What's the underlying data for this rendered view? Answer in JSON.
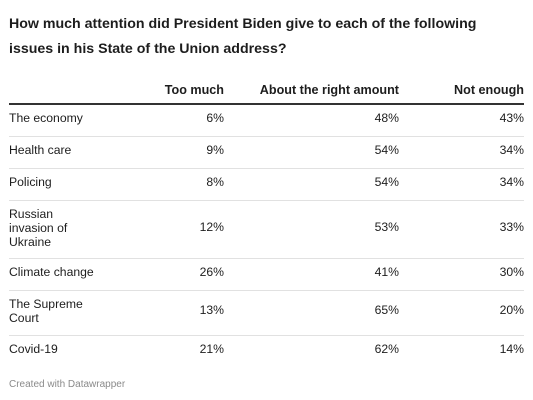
{
  "chart_data": {
    "type": "table",
    "title": "How much attention did President Biden give to each of the following issues in his State of the Union address?",
    "columns": [
      "",
      "Too much",
      "About the right amount",
      "Not enough"
    ],
    "rows": [
      {
        "label": "The economy",
        "values": [
          "6%",
          "48%",
          "43%"
        ]
      },
      {
        "label": "Health care",
        "values": [
          "9%",
          "54%",
          "34%"
        ]
      },
      {
        "label": "Policing",
        "values": [
          "8%",
          "54%",
          "34%"
        ]
      },
      {
        "label": "Russian invasion of Ukraine",
        "values": [
          "12%",
          "53%",
          "33%"
        ]
      },
      {
        "label": "Climate change",
        "values": [
          "26%",
          "41%",
          "30%"
        ]
      },
      {
        "label": "The Supreme Court",
        "values": [
          "13%",
          "65%",
          "20%"
        ]
      },
      {
        "label": "Covid-19",
        "values": [
          "21%",
          "62%",
          "14%"
        ]
      }
    ]
  },
  "footer": "Created with Datawrapper"
}
